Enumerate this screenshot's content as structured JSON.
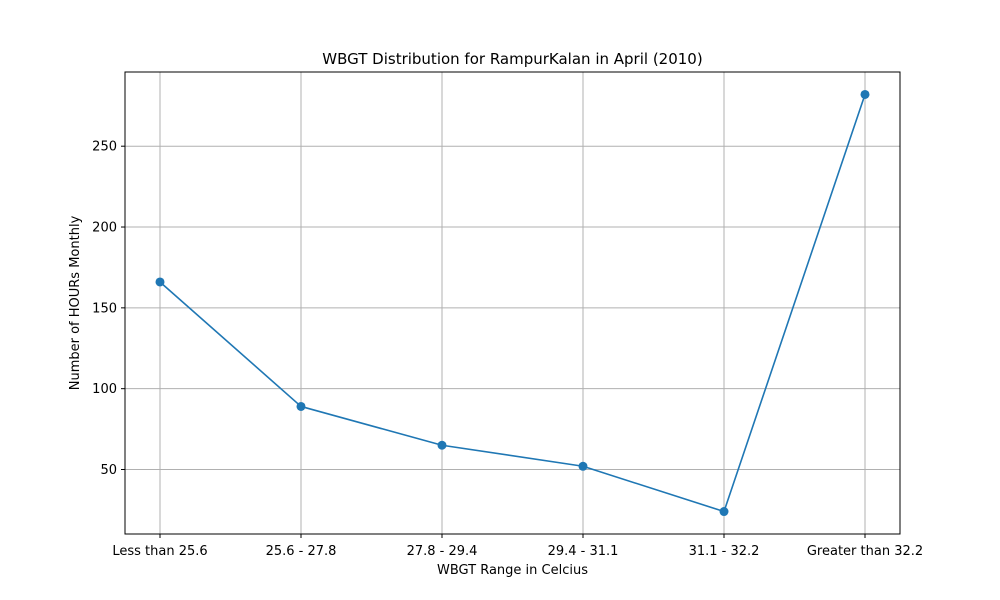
{
  "chart_data": {
    "type": "line",
    "title": "WBGT Distribution for RampurKalan in April (2010)",
    "xlabel": "WBGT Range in Celcius",
    "ylabel": "Number of HOURs Monthly",
    "categories": [
      "Less than 25.6",
      "25.6 - 27.8",
      "27.8 - 29.4",
      "29.4 - 31.1",
      "31.1 - 32.2",
      "Greater than 32.2"
    ],
    "values": [
      166,
      89,
      65,
      52,
      24,
      282
    ],
    "ylim": [
      10.1,
      295.9
    ],
    "yticks": [
      50,
      100,
      150,
      200,
      250
    ],
    "grid": true,
    "marker": "circle",
    "line_color": "#1f77b4"
  }
}
